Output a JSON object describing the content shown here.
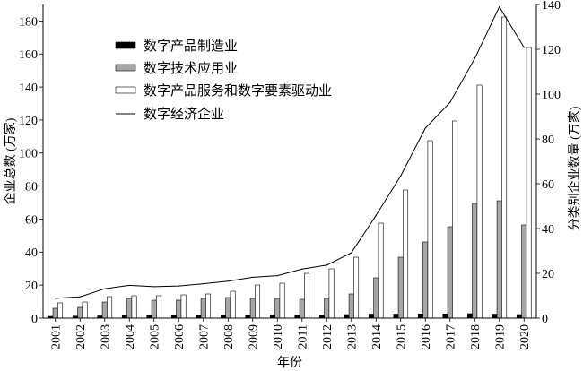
{
  "chart_data": {
    "type": "bar",
    "categories": [
      "2001",
      "2002",
      "2003",
      "2004",
      "2005",
      "2006",
      "2007",
      "2008",
      "2009",
      "2010",
      "2011",
      "2012",
      "2013",
      "2014",
      "2015",
      "2016",
      "2017",
      "2018",
      "2019",
      "2020"
    ],
    "xlabel": "年份",
    "ylabel": "企业总数 (万家)",
    "ylabel_right": "分类别企业数量 (万家)",
    "ylim": [
      0,
      190
    ],
    "ylim_right": [
      0,
      140
    ],
    "yticks": [
      0,
      20,
      40,
      60,
      80,
      100,
      120,
      140,
      160,
      180
    ],
    "yticks_right": [
      0,
      20,
      40,
      60,
      80,
      100,
      120,
      140
    ],
    "grid": false,
    "legend_position": "top-left",
    "series": [
      {
        "name": "数字产品制造业",
        "type": "bar",
        "y_axis": "right",
        "color": "#000000",
        "edge_color": "#000000",
        "values": [
          0.8,
          0.9,
          1.0,
          1.1,
          1.1,
          1.1,
          1.2,
          1.2,
          1.2,
          1.3,
          1.3,
          1.3,
          1.6,
          1.8,
          1.8,
          1.9,
          1.9,
          2.0,
          1.8,
          1.6
        ]
      },
      {
        "name": "数字技术应用业",
        "type": "bar",
        "y_axis": "right",
        "color": "#a6a6a6",
        "edge_color": "#000000",
        "values": [
          4.4,
          4.8,
          7.2,
          8.8,
          8.0,
          8.0,
          8.8,
          9.2,
          8.8,
          8.8,
          8.4,
          8.8,
          10.8,
          18.0,
          27.2,
          34.0,
          40.8,
          51.2,
          52.4,
          41.6
        ]
      },
      {
        "name": "数字产品服务和数字要素驱动业",
        "type": "bar",
        "y_axis": "right",
        "color": "#ffffff",
        "edge_color": "#000000",
        "values": [
          6.8,
          7.2,
          9.6,
          10.0,
          10.0,
          10.4,
          10.8,
          12.0,
          14.8,
          15.6,
          20.0,
          22.0,
          27.2,
          42.4,
          57.2,
          79.2,
          88.0,
          104.0,
          134.4,
          120.8
        ]
      },
      {
        "name": "数字经济企业",
        "type": "line",
        "y_axis": "left",
        "color": "#000000",
        "values": [
          12.0,
          12.9,
          17.8,
          19.9,
          19.1,
          19.5,
          20.8,
          22.4,
          24.8,
          25.7,
          29.7,
          32.1,
          39.6,
          62.2,
          86.2,
          115.1,
          130.7,
          157.2,
          188.6,
          164.0
        ]
      }
    ]
  }
}
